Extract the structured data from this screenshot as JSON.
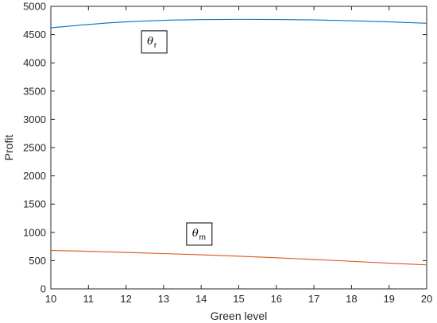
{
  "chart_data": {
    "type": "line",
    "xlabel": "Green level",
    "ylabel": "Profit",
    "xlim": [
      10,
      20
    ],
    "ylim": [
      0,
      5000
    ],
    "x_ticks": [
      10,
      11,
      12,
      13,
      14,
      15,
      16,
      17,
      18,
      19,
      20
    ],
    "y_ticks": [
      0,
      500,
      1000,
      1500,
      2000,
      2500,
      3000,
      3500,
      4000,
      4500,
      5000
    ],
    "grid": false,
    "series": [
      {
        "color": "#0072BD",
        "x": [
          10,
          11,
          12,
          13,
          14,
          15,
          16,
          17,
          18,
          19,
          20
        ],
        "y": [
          4620,
          4680,
          4725,
          4752,
          4765,
          4770,
          4768,
          4760,
          4745,
          4725,
          4700
        ]
      },
      {
        "color": "#D95319",
        "x": [
          10,
          11,
          12,
          13,
          14,
          15,
          16,
          17,
          18,
          19,
          20
        ],
        "y": [
          680,
          665,
          645,
          625,
          603,
          578,
          550,
          520,
          488,
          455,
          425
        ]
      }
    ],
    "annotations": [
      {
        "symbol": "θ",
        "subscript": "r",
        "x": 12.75,
        "y": 4370
      },
      {
        "symbol": "θ",
        "subscript": "m",
        "x": 13.95,
        "y": 970
      }
    ]
  }
}
